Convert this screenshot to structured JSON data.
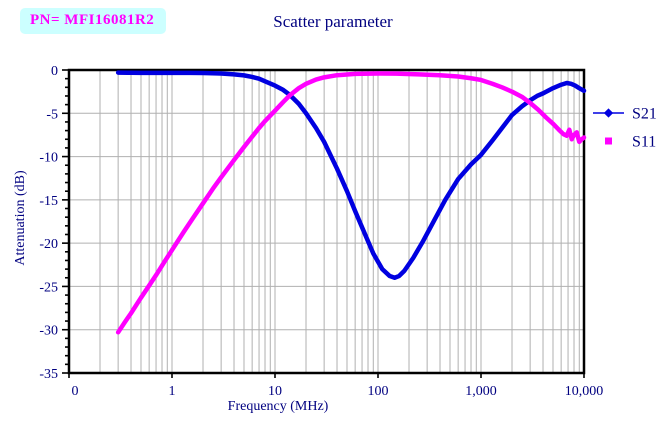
{
  "pn_box": {
    "label": "PN= MFI16081R2"
  },
  "title": "Scatter parameter",
  "colors": {
    "background": "#FFFFFF",
    "text": "#000080",
    "grid": "#B0B0B0",
    "axis": "#000000",
    "pn_background": "#CCFFFF",
    "pn_text": "#FF00FF",
    "s21": "#0000E0",
    "s11": "#FF00FF"
  },
  "chart_data": {
    "type": "line",
    "title": "Scatter parameter",
    "xlabel": "Frequency (MHz)",
    "ylabel": "Attenuation (dB)",
    "x_scale": "log",
    "xlim": [
      0.1,
      10000
    ],
    "ylim": [
      -35,
      0
    ],
    "x_tick_values": [
      0.1,
      1,
      10,
      100,
      1000,
      10000
    ],
    "x_tick_labels": [
      "0",
      "1",
      "10",
      "100",
      "1,000",
      "10,000"
    ],
    "y_ticks": [
      0,
      -5,
      -10,
      -15,
      -20,
      -25,
      -30,
      -35
    ],
    "grid": true,
    "legend_position": "right",
    "series": [
      {
        "name": "S21",
        "color": "#0000E0",
        "marker": "diamond-on-line",
        "points": [
          [
            0.3,
            -0.3
          ],
          [
            0.4,
            -0.32
          ],
          [
            0.5,
            -0.33
          ],
          [
            0.7,
            -0.33
          ],
          [
            1,
            -0.33
          ],
          [
            1.5,
            -0.33
          ],
          [
            2,
            -0.34
          ],
          [
            3,
            -0.4
          ],
          [
            4,
            -0.5
          ],
          [
            5,
            -0.62
          ],
          [
            6,
            -0.8
          ],
          [
            7,
            -1.0
          ],
          [
            8,
            -1.3
          ],
          [
            10,
            -1.8
          ],
          [
            12,
            -2.3
          ],
          [
            14,
            -2.9
          ],
          [
            17,
            -3.9
          ],
          [
            20,
            -5.0
          ],
          [
            25,
            -6.7
          ],
          [
            30,
            -8.3
          ],
          [
            40,
            -11.4
          ],
          [
            50,
            -14.0
          ],
          [
            60,
            -16.3
          ],
          [
            75,
            -19.0
          ],
          [
            90,
            -21.2
          ],
          [
            110,
            -23.0
          ],
          [
            130,
            -23.8
          ],
          [
            145,
            -24.0
          ],
          [
            160,
            -23.8
          ],
          [
            180,
            -23.2
          ],
          [
            220,
            -21.7
          ],
          [
            270,
            -19.9
          ],
          [
            350,
            -17.4
          ],
          [
            450,
            -15.0
          ],
          [
            600,
            -12.6
          ],
          [
            800,
            -10.9
          ],
          [
            1000,
            -9.8
          ],
          [
            1300,
            -8.1
          ],
          [
            1600,
            -6.7
          ],
          [
            2000,
            -5.2
          ],
          [
            2500,
            -4.2
          ],
          [
            3000,
            -3.5
          ],
          [
            3500,
            -3.0
          ],
          [
            4000,
            -2.7
          ],
          [
            5000,
            -2.1
          ],
          [
            6000,
            -1.7
          ],
          [
            6800,
            -1.5
          ],
          [
            7500,
            -1.6
          ],
          [
            8200,
            -1.8
          ],
          [
            9000,
            -2.1
          ],
          [
            10000,
            -2.4
          ]
        ]
      },
      {
        "name": "S11",
        "color": "#FF00FF",
        "marker": "square",
        "points": [
          [
            0.3,
            -30.3
          ],
          [
            0.35,
            -29.1
          ],
          [
            0.4,
            -28.1
          ],
          [
            0.5,
            -26.3
          ],
          [
            0.6,
            -24.9
          ],
          [
            0.7,
            -23.7
          ],
          [
            0.85,
            -22.1
          ],
          [
            1,
            -20.8
          ],
          [
            1.3,
            -18.7
          ],
          [
            1.6,
            -17.1
          ],
          [
            2,
            -15.4
          ],
          [
            2.5,
            -13.7
          ],
          [
            3,
            -12.4
          ],
          [
            4,
            -10.4
          ],
          [
            5,
            -8.9
          ],
          [
            6,
            -7.7
          ],
          [
            7,
            -6.7
          ],
          [
            8,
            -5.9
          ],
          [
            10,
            -4.7
          ],
          [
            12,
            -3.7
          ],
          [
            14,
            -2.9
          ],
          [
            17,
            -2.1
          ],
          [
            20,
            -1.6
          ],
          [
            25,
            -1.1
          ],
          [
            30,
            -0.85
          ],
          [
            40,
            -0.6
          ],
          [
            60,
            -0.45
          ],
          [
            100,
            -0.4
          ],
          [
            150,
            -0.42
          ],
          [
            250,
            -0.5
          ],
          [
            400,
            -0.6
          ],
          [
            600,
            -0.75
          ],
          [
            800,
            -0.95
          ],
          [
            1000,
            -1.15
          ],
          [
            1300,
            -1.6
          ],
          [
            1600,
            -2.0
          ],
          [
            2000,
            -2.5
          ],
          [
            2500,
            -3.1
          ],
          [
            3000,
            -3.8
          ],
          [
            3600,
            -4.6
          ],
          [
            4300,
            -5.5
          ],
          [
            5000,
            -6.2
          ],
          [
            5700,
            -6.9
          ],
          [
            6300,
            -7.4
          ],
          [
            6800,
            -7.6
          ],
          [
            7200,
            -6.9
          ],
          [
            7600,
            -8.0
          ],
          [
            8000,
            -7.5
          ],
          [
            8500,
            -7.2
          ],
          [
            9000,
            -8.3
          ],
          [
            9500,
            -8.0
          ],
          [
            10000,
            -7.8
          ]
        ]
      }
    ]
  }
}
